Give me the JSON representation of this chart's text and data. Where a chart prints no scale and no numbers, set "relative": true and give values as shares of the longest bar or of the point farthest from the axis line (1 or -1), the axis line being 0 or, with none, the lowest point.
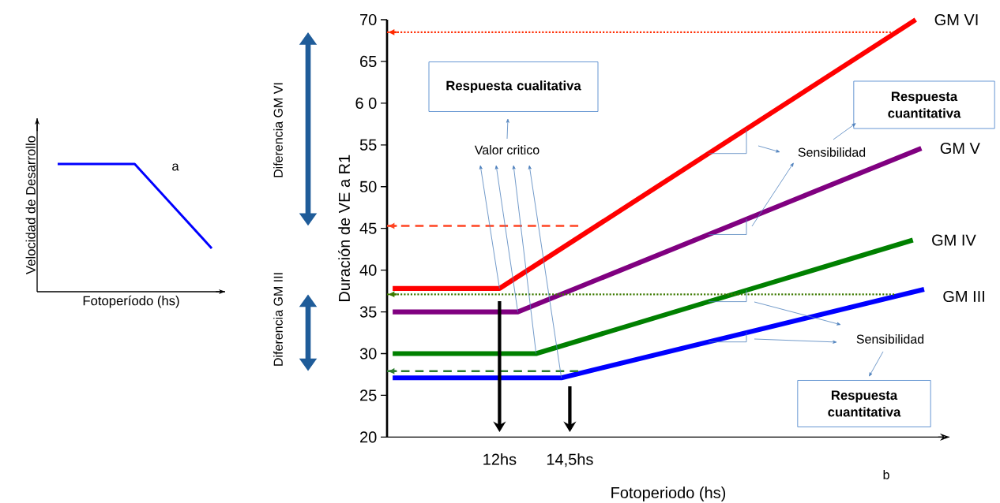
{
  "chart_data": [
    {
      "type": "line",
      "relative": true,
      "categories": [
        null,
        null,
        null
      ],
      "values": [
        1,
        1,
        0.34
      ],
      "color": "#0000ff",
      "xlabel": "Fotoperíodo (hs)",
      "ylabel": "Velocidad de Desarrollo",
      "annotations": [
        "a"
      ]
    },
    {
      "type": "line",
      "xlabel": "Fotoperiodo (hs)",
      "ylabel": "Duración de VE a R1",
      "xlim": [
        8,
        28
      ],
      "ylim": [
        20,
        70
      ],
      "xticks": [
        {
          "value": 12,
          "label": "12hs"
        },
        {
          "value": 14.5,
          "label": "14,5hs"
        }
      ],
      "yticks": [
        20,
        25,
        30,
        35,
        40,
        45,
        50,
        55,
        {
          "value": 60,
          "label": "6 0"
        },
        65,
        70
      ],
      "series": [
        {
          "name": "GM VI",
          "color": "#ff0000",
          "x": [
            8.2,
            12,
            26.8
          ],
          "values": [
            37.8,
            37.8,
            70
          ]
        },
        {
          "name": "GM V",
          "color": "#800080",
          "x": [
            8.2,
            12.65,
            27.0
          ],
          "values": [
            35,
            35,
            54.6
          ]
        },
        {
          "name": "GM IV",
          "color": "#008000",
          "x": [
            8.2,
            13.3,
            26.7
          ],
          "values": [
            30,
            30,
            43.6
          ]
        },
        {
          "name": "GM III",
          "color": "#0000ff",
          "x": [
            8.2,
            14.2,
            27.1
          ],
          "values": [
            27.1,
            27.1,
            37.7
          ]
        },
        {
          "color": "#ff2a00",
          "line_style": "dotted",
          "x": [
            8,
            26.0
          ],
          "values": [
            68.5,
            68.5
          ]
        },
        {
          "color": "#ff4422",
          "line_style": "dashed",
          "x": [
            8,
            14.8
          ],
          "values": [
            45.3,
            45.3
          ]
        },
        {
          "color": "#3d7a00",
          "line_style": "dotted",
          "x": [
            8,
            26.1
          ],
          "values": [
            37.1,
            37.1
          ]
        },
        {
          "color": "#2e7d32",
          "line_style": "dashed",
          "x": [
            8,
            14.8
          ],
          "values": [
            27.9,
            27.9
          ]
        }
      ],
      "annotations": [
        "Respuesta cualitativa",
        {
          "text": "Valor critico",
          "x": 12,
          "y": 37.8
        },
        "Sensibilidad",
        "Respuesta cuantitativa",
        "Sensibilidad",
        "Respuesta cuantitativa",
        "Diferencia GM VI",
        "Diferencia GM III",
        "b"
      ]
    }
  ]
}
